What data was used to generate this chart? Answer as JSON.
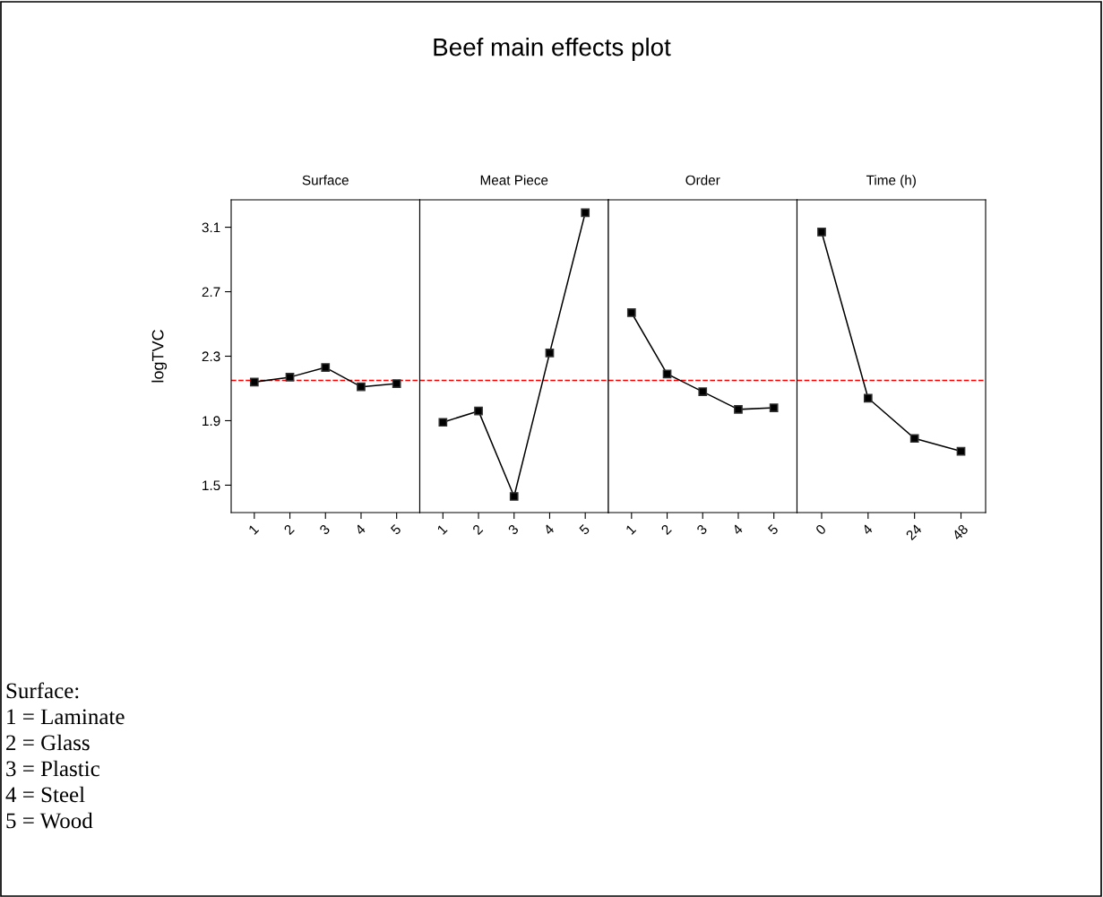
{
  "chart_data": [
    {
      "type": "line",
      "title": "Surface",
      "ylabel": "logTVC",
      "categories": [
        "1",
        "2",
        "3",
        "4",
        "5"
      ],
      "values": [
        2.14,
        2.17,
        2.23,
        2.11,
        2.13
      ],
      "color": "#000000",
      "marker": "square",
      "line_style": "solid",
      "ylim": [
        1.33,
        3.27
      ],
      "yticks": [
        1.5,
        1.9,
        2.3,
        2.7,
        3.1
      ],
      "grid": false,
      "ref_lines": [
        {
          "axis": "y",
          "value": 2.15,
          "color": "#ff0000",
          "line_style": "dashed"
        }
      ],
      "annotations": [
        "Beef main effects plot",
        "Surface:",
        "1 = Laminate",
        "2 = Glass",
        "3 = Plastic",
        "4 = Steel",
        "5 = Wood"
      ]
    },
    {
      "type": "line",
      "title": "Meat Piece",
      "categories": [
        "1",
        "2",
        "3",
        "4",
        "5"
      ],
      "values": [
        1.89,
        1.96,
        1.43,
        2.32,
        3.19
      ],
      "color": "#000000",
      "marker": "square",
      "line_style": "solid",
      "ylim": [
        1.33,
        3.27
      ],
      "yticks": [
        1.5,
        1.9,
        2.3,
        2.7,
        3.1
      ],
      "grid": false,
      "tick_labels": "x",
      "ref_lines": [
        {
          "axis": "y",
          "value": 2.15,
          "color": "#ff0000",
          "line_style": "dashed"
        }
      ]
    },
    {
      "type": "line",
      "title": "Order",
      "categories": [
        "1",
        "2",
        "3",
        "4",
        "5"
      ],
      "values": [
        2.57,
        2.19,
        2.08,
        1.97,
        1.98
      ],
      "color": "#000000",
      "marker": "square",
      "line_style": "solid",
      "ylim": [
        1.33,
        3.27
      ],
      "yticks": [
        1.5,
        1.9,
        2.3,
        2.7,
        3.1
      ],
      "grid": false,
      "tick_labels": "x",
      "ref_lines": [
        {
          "axis": "y",
          "value": 2.15,
          "color": "#ff0000",
          "line_style": "dashed"
        }
      ]
    },
    {
      "type": "line",
      "title": "Time (h)",
      "categories": [
        "0",
        "4",
        "24",
        "48"
      ],
      "values": [
        3.07,
        2.04,
        1.79,
        1.71
      ],
      "color": "#000000",
      "marker": "square",
      "line_style": "solid",
      "ylim": [
        1.33,
        3.27
      ],
      "yticks": [
        1.5,
        1.9,
        2.3,
        2.7,
        3.1
      ],
      "grid": false,
      "tick_labels": "x",
      "ref_lines": [
        {
          "axis": "y",
          "value": 2.15,
          "color": "#ff0000",
          "line_style": "dashed"
        }
      ]
    }
  ]
}
